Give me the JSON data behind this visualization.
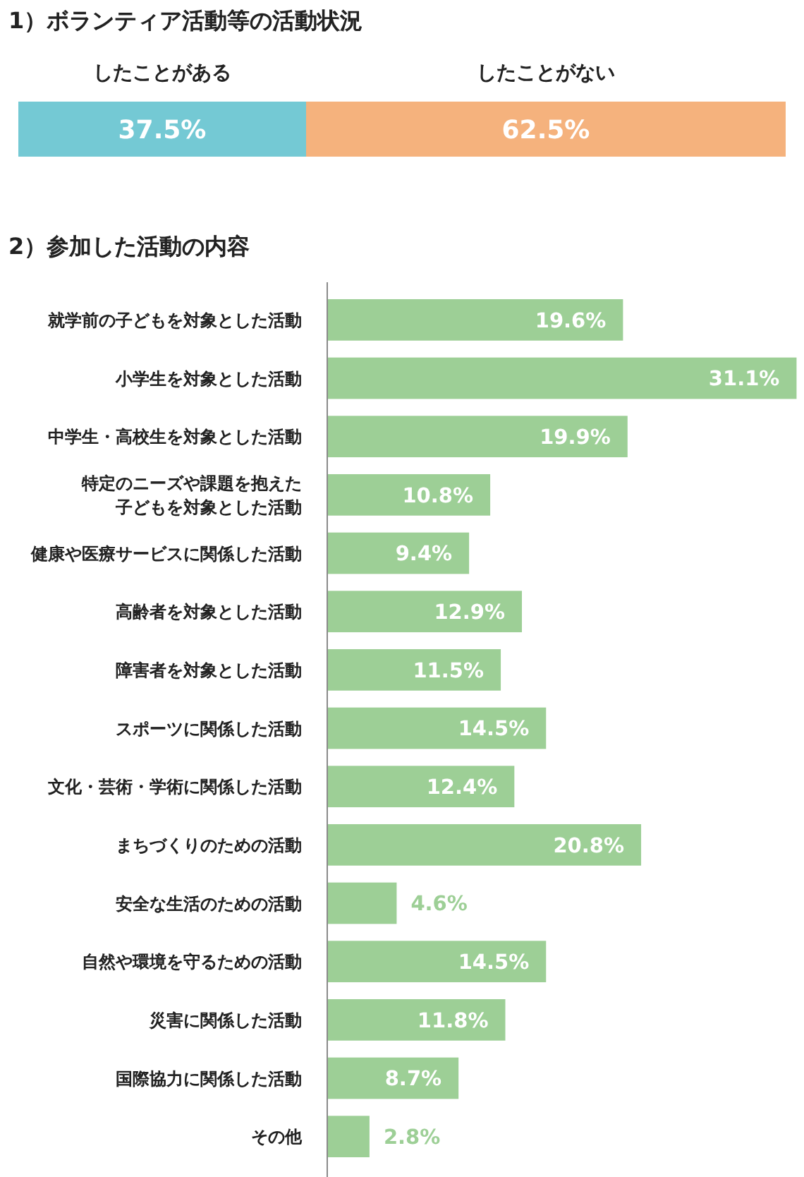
{
  "chart_data": [
    {
      "type": "bar",
      "title": "1）ボランティア活動等の活動状況",
      "orientation": "horizontal",
      "stacked": true,
      "categories": [
        null
      ],
      "xlim": [
        0,
        100
      ],
      "tick_labels": false,
      "series": [
        {
          "name": "したことがある",
          "color": "#74c9d4",
          "values": [
            37.5
          ],
          "value_labels": [
            "37.5%"
          ]
        },
        {
          "name": "したことがない",
          "color": "#f5b27d",
          "values": [
            62.5
          ],
          "value_labels": [
            "62.5%"
          ]
        }
      ]
    },
    {
      "type": "bar",
      "title": "2）参加した活動の内容",
      "orientation": "horizontal",
      "tick_labels": "y",
      "xlim": [
        0,
        31.5
      ],
      "color": "#9dcf96",
      "categories": [
        "就学前の子どもを対象とした活動",
        "小学生を対象とした活動",
        "中学生・高校生を対象とした活動",
        "特定のニーズや課題を抱えた子どもを対象とした活動",
        "健康や医療サービスに関係した活動",
        "高齢者を対象とした活動",
        "障害者を対象とした活動",
        "スポーツに関係した活動",
        "文化・芸術・学術に関係した活動",
        "まちづくりのための活動",
        "安全な生活のための活動",
        "自然や環境を守るための活動",
        "災害に関係した活動",
        "国際協力に関係した活動",
        "その他"
      ],
      "values": [
        19.6,
        31.1,
        19.9,
        10.8,
        9.4,
        12.9,
        11.5,
        14.5,
        12.4,
        20.8,
        4.6,
        14.5,
        11.8,
        8.7,
        2.8
      ],
      "value_labels": [
        "19.6%",
        "31.1%",
        "19.9%",
        "10.8%",
        "9.4%",
        "12.9%",
        "11.5%",
        "14.5%",
        "12.4%",
        "20.8%",
        "4.6%",
        "14.5%",
        "11.8%",
        "8.7%",
        "2.8%"
      ]
    }
  ]
}
